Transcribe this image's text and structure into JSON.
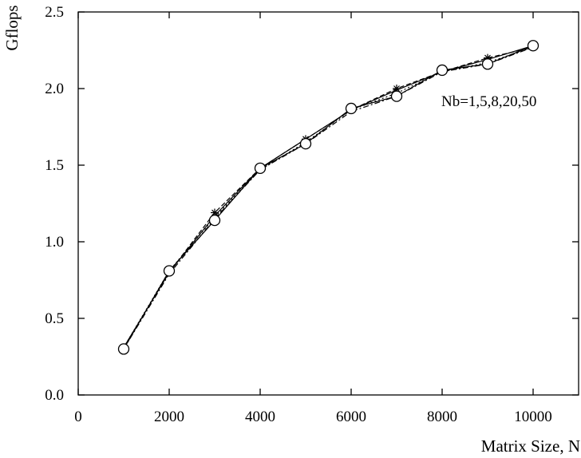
{
  "chart_data": {
    "type": "line",
    "title": "",
    "xlabel": "Matrix Size, N",
    "ylabel": "Gflops",
    "xlim": [
      0,
      11000
    ],
    "ylim": [
      0.0,
      2.5
    ],
    "x_ticks": [
      0,
      2000,
      4000,
      6000,
      8000,
      10000
    ],
    "x_tick_labels": [
      "0",
      "2000",
      "4000",
      "6000",
      "8000",
      "10000"
    ],
    "y_ticks": [
      0.0,
      0.5,
      1.0,
      1.5,
      2.0,
      2.5
    ],
    "y_tick_labels": [
      "0.0",
      "0.5",
      "1.0",
      "1.5",
      "2.0",
      "2.5"
    ],
    "grid": false,
    "annotation": "Nb=1,5,8,20,50",
    "x": [
      1000,
      2000,
      3000,
      4000,
      5000,
      6000,
      7000,
      8000,
      9000,
      10000
    ],
    "series": [
      {
        "style": "solid",
        "marker": "none",
        "values": [
          0.31,
          0.8,
          1.17,
          1.48,
          1.67,
          1.86,
          1.99,
          2.11,
          2.19,
          2.28
        ]
      },
      {
        "style": "dashed",
        "marker": "star",
        "values": [
          0.31,
          0.8,
          1.19,
          1.48,
          1.67,
          1.86,
          2.0,
          2.11,
          2.2,
          2.27
        ]
      },
      {
        "style": "dotted",
        "marker": "none",
        "values": [
          0.31,
          0.81,
          1.16,
          1.47,
          1.65,
          1.86,
          1.97,
          2.11,
          2.17,
          2.27
        ]
      },
      {
        "style": "dashdot",
        "marker": "none",
        "values": [
          0.3,
          0.79,
          1.15,
          1.47,
          1.64,
          1.85,
          1.95,
          2.11,
          2.16,
          2.27
        ]
      },
      {
        "style": "solid",
        "marker": "circle",
        "values": [
          0.3,
          0.81,
          1.14,
          1.48,
          1.64,
          1.87,
          1.95,
          2.12,
          2.16,
          2.28
        ]
      }
    ]
  }
}
